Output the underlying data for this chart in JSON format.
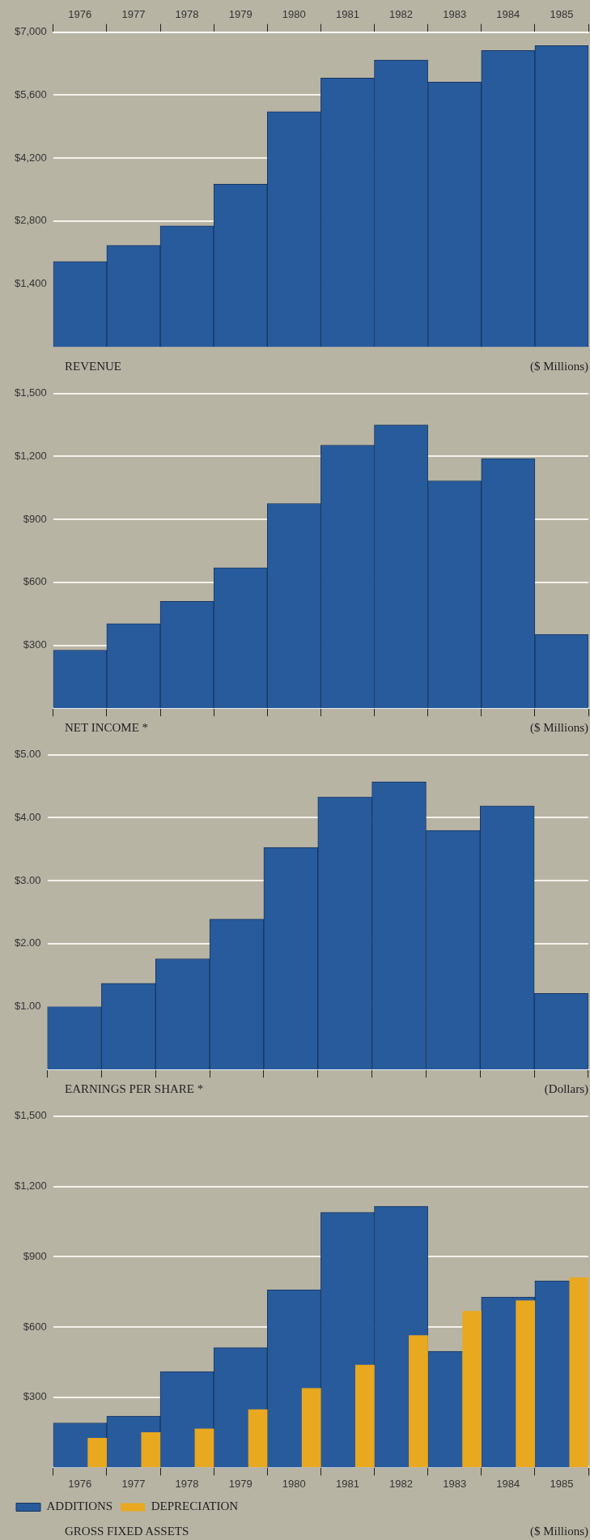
{
  "chart_data": [
    {
      "type": "bar",
      "title": "REVENUE",
      "annotations": [
        "($ Millions)"
      ],
      "categories": [
        "1976",
        "1977",
        "1978",
        "1979",
        "1980",
        "1981",
        "1982",
        "1983",
        "1984",
        "1985"
      ],
      "values": [
        1900,
        2260,
        2690,
        3620,
        5230,
        5980,
        6380,
        5890,
        6590,
        6700
      ],
      "color": "#285b9c",
      "ylim": [
        0,
        7000
      ],
      "yticks": [
        {
          "value": 1400,
          "label": "$1,400"
        },
        {
          "value": 2800,
          "label": "$2,800"
        },
        {
          "value": 4200,
          "label": "$4,200"
        },
        {
          "value": 5600,
          "label": "$5,600"
        },
        {
          "value": 7000,
          "label": "$7,000"
        }
      ],
      "grid": "y"
    },
    {
      "type": "bar",
      "title": "NET INCOME *",
      "annotations": [
        "($ Millions)"
      ],
      "categories": [
        "1976",
        "1977",
        "1978",
        "1979",
        "1980",
        "1981",
        "1982",
        "1983",
        "1984",
        "1985"
      ],
      "values": [
        277,
        403,
        509,
        670,
        976,
        1254,
        1350,
        1084,
        1190,
        352
      ],
      "color": "#285b9c",
      "ylim": [
        0,
        1500
      ],
      "yticks": [
        {
          "value": 300,
          "label": "$300"
        },
        {
          "value": 600,
          "label": "$600"
        },
        {
          "value": 900,
          "label": "$900"
        },
        {
          "value": 1200,
          "label": "$1,200"
        },
        {
          "value": 1500,
          "label": "$1,500"
        }
      ],
      "grid": "y",
      "tick_labels": "y"
    },
    {
      "type": "bar",
      "title": "EARNINGS PER SHARE *",
      "annotations": [
        "(Dollars)"
      ],
      "categories": [
        "1976",
        "1977",
        "1978",
        "1979",
        "1980",
        "1981",
        "1982",
        "1983",
        "1984",
        "1985"
      ],
      "values": [
        1.0,
        1.37,
        1.76,
        2.39,
        3.53,
        4.33,
        4.57,
        3.8,
        4.19,
        1.21
      ],
      "color": "#285b9c",
      "ylim": [
        0,
        5
      ],
      "yticks": [
        {
          "value": 1,
          "label": "$1.00"
        },
        {
          "value": 2,
          "label": "$2.00"
        },
        {
          "value": 3,
          "label": "$3.00"
        },
        {
          "value": 4,
          "label": "$4.00"
        },
        {
          "value": 5,
          "label": "$5.00"
        }
      ],
      "grid": "y",
      "tick_labels": "y"
    },
    {
      "type": "bar",
      "title": "GROSS FIXED ASSETS",
      "annotations": [
        "($ Millions)"
      ],
      "categories": [
        "1976",
        "1977",
        "1978",
        "1979",
        "1980",
        "1981",
        "1982",
        "1983",
        "1984",
        "1985"
      ],
      "series": [
        {
          "name": "ADDITIONS",
          "color": "#285b9c",
          "values": [
            190,
            219,
            409,
            511,
            759,
            1089,
            1115,
            496,
            728,
            797
          ]
        },
        {
          "name": "DEPRECIATION",
          "color": "#e8a820",
          "values": [
            126,
            150,
            166,
            248,
            339,
            438,
            564,
            668,
            713,
            812
          ]
        }
      ],
      "ylim": [
        0,
        1500
      ],
      "yticks": [
        {
          "value": 300,
          "label": "$300"
        },
        {
          "value": 600,
          "label": "$600"
        },
        {
          "value": 900,
          "label": "$900"
        },
        {
          "value": 1200,
          "label": "$1,200"
        },
        {
          "value": 1500,
          "label": "$1,500"
        }
      ],
      "grid": "y",
      "legend": "bottom left"
    }
  ]
}
